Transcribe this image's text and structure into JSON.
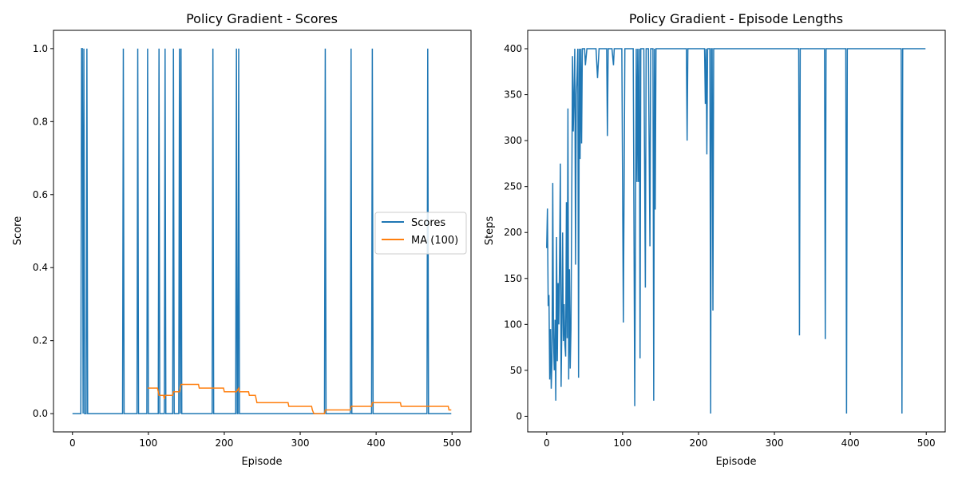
{
  "chart_data": [
    {
      "type": "line",
      "title": "Policy Gradient - Scores",
      "xlabel": "Episode",
      "ylabel": "Score",
      "xlim": [
        -25,
        525
      ],
      "ylim": [
        -0.05,
        1.05
      ],
      "xticks": [
        0,
        100,
        200,
        300,
        400,
        500
      ],
      "yticks": [
        0.0,
        0.2,
        0.4,
        0.6,
        0.8,
        1.0
      ],
      "xtick_labels": [
        "0",
        "100",
        "200",
        "300",
        "400",
        "500"
      ],
      "ytick_labels": [
        "0.0",
        "0.2",
        "0.4",
        "0.6",
        "0.8",
        "1.0"
      ],
      "legend_placement": "center-right",
      "series": [
        {
          "name": "Scores",
          "color": "#1f77b4",
          "episodes": 500,
          "success_episodes": [
            12,
            13,
            15,
            19,
            67,
            86,
            99,
            114,
            122,
            133,
            141,
            143,
            185,
            216,
            219,
            333,
            367,
            395,
            468
          ]
        },
        {
          "name": "MA (100)",
          "color": "#ff7f0e",
          "points": [
            [
              99,
              0.07
            ],
            [
              112,
              0.07
            ],
            [
              113,
              0.06
            ],
            [
              114,
              0.05
            ],
            [
              120,
              0.05
            ],
            [
              121,
              0.04
            ],
            [
              122,
              0.05
            ],
            [
              132,
              0.05
            ],
            [
              133,
              0.06
            ],
            [
              141,
              0.06
            ],
            [
              142,
              0.07
            ],
            [
              143,
              0.08
            ],
            [
              166,
              0.08
            ],
            [
              167,
              0.07
            ],
            [
              199,
              0.07
            ],
            [
              200,
              0.06
            ],
            [
              215,
              0.06
            ],
            [
              216,
              0.06
            ],
            [
              219,
              0.07
            ],
            [
              220,
              0.06
            ],
            [
              232,
              0.06
            ],
            [
              233,
              0.05
            ],
            [
              241,
              0.05
            ],
            [
              242,
              0.04
            ],
            [
              243,
              0.03
            ],
            [
              284,
              0.03
            ],
            [
              285,
              0.02
            ],
            [
              315,
              0.02
            ],
            [
              316,
              0.01
            ],
            [
              318,
              0.0
            ],
            [
              332,
              0.0
            ],
            [
              333,
              0.01
            ],
            [
              365,
              0.01
            ],
            [
              366,
              0.01
            ],
            [
              367,
              0.02
            ],
            [
              394,
              0.02
            ],
            [
              395,
              0.03
            ],
            [
              432,
              0.03
            ],
            [
              433,
              0.02
            ],
            [
              467,
              0.02
            ],
            [
              468,
              0.02
            ],
            [
              495,
              0.02
            ],
            [
              496,
              0.01
            ],
            [
              499,
              0.01
            ]
          ]
        }
      ]
    },
    {
      "type": "line",
      "title": "Policy Gradient - Episode Lengths",
      "xlabel": "Episode",
      "ylabel": "Steps",
      "xlim": [
        -25,
        525
      ],
      "ylim": [
        -17,
        420
      ],
      "xticks": [
        0,
        100,
        200,
        300,
        400,
        500
      ],
      "yticks": [
        0,
        50,
        100,
        150,
        200,
        250,
        300,
        350,
        400
      ],
      "xtick_labels": [
        "0",
        "100",
        "200",
        "300",
        "400",
        "500"
      ],
      "ytick_labels": [
        "0",
        "50",
        "100",
        "150",
        "200",
        "250",
        "300",
        "350",
        "400"
      ],
      "series": [
        {
          "color": "#1f77b4",
          "points": [
            [
              0,
              183
            ],
            [
              1,
              226
            ],
            [
              2,
              120
            ],
            [
              3,
              132
            ],
            [
              4,
              40
            ],
            [
              5,
              95
            ],
            [
              6,
              30
            ],
            [
              7,
              60
            ],
            [
              8,
              254
            ],
            [
              9,
              85
            ],
            [
              10,
              50
            ],
            [
              11,
              105
            ],
            [
              12,
              17
            ],
            [
              13,
              195
            ],
            [
              14,
              60
            ],
            [
              15,
              145
            ],
            [
              16,
              100
            ],
            [
              17,
              170
            ],
            [
              18,
              275
            ],
            [
              19,
              32
            ],
            [
              20,
              100
            ],
            [
              21,
              200
            ],
            [
              22,
              82
            ],
            [
              23,
              122
            ],
            [
              24,
              78
            ],
            [
              25,
              65
            ],
            [
              26,
              233
            ],
            [
              27,
              85
            ],
            [
              28,
              335
            ],
            [
              29,
              40
            ],
            [
              30,
              160
            ],
            [
              31,
              52
            ],
            [
              32,
              95
            ],
            [
              33,
              230
            ],
            [
              34,
              392
            ],
            [
              35,
              310
            ],
            [
              36,
              350
            ],
            [
              37,
              400
            ],
            [
              38,
              165
            ],
            [
              39,
              350
            ],
            [
              40,
              370
            ],
            [
              41,
              400
            ],
            [
              42,
              42
            ],
            [
              43,
              400
            ],
            [
              44,
              280
            ],
            [
              45,
              400
            ],
            [
              46,
              297
            ],
            [
              47,
              400
            ],
            [
              50,
              400
            ],
            [
              51,
              382
            ],
            [
              53,
              400
            ],
            [
              65,
              400
            ],
            [
              67,
              368
            ],
            [
              69,
              400
            ],
            [
              79,
              400
            ],
            [
              80,
              305
            ],
            [
              81,
              400
            ],
            [
              86,
              400
            ],
            [
              88,
              382
            ],
            [
              89,
              400
            ],
            [
              99,
              400
            ],
            [
              101,
              102
            ],
            [
              103,
              400
            ],
            [
              114,
              400
            ],
            [
              116,
              11
            ],
            [
              118,
              400
            ],
            [
              119,
              255
            ],
            [
              120,
              400
            ],
            [
              121,
              255
            ],
            [
              122,
              400
            ],
            [
              123,
              63
            ],
            [
              124,
              400
            ],
            [
              128,
              400
            ],
            [
              130,
              140
            ],
            [
              131,
              400
            ],
            [
              134,
              400
            ],
            [
              136,
              185
            ],
            [
              137,
              400
            ],
            [
              140,
              400
            ],
            [
              141,
              17
            ],
            [
              142,
              400
            ],
            [
              143,
              225
            ],
            [
              144,
              400
            ],
            [
              184,
              400
            ],
            [
              185,
              300
            ],
            [
              186,
              400
            ],
            [
              208,
              400
            ],
            [
              209,
              340
            ],
            [
              210,
              400
            ],
            [
              211,
              285
            ],
            [
              212,
              400
            ],
            [
              215,
              400
            ],
            [
              216,
              3
            ],
            [
              217,
              400
            ],
            [
              218,
              400
            ],
            [
              219,
              115
            ],
            [
              220,
              400
            ],
            [
              332,
              400
            ],
            [
              333,
              88
            ],
            [
              334,
              400
            ],
            [
              366,
              400
            ],
            [
              367,
              84
            ],
            [
              368,
              400
            ],
            [
              394,
              400
            ],
            [
              395,
              3
            ],
            [
              396,
              400
            ],
            [
              467,
              400
            ],
            [
              468,
              3
            ],
            [
              469,
              400
            ],
            [
              499,
              400
            ]
          ]
        }
      ]
    }
  ]
}
